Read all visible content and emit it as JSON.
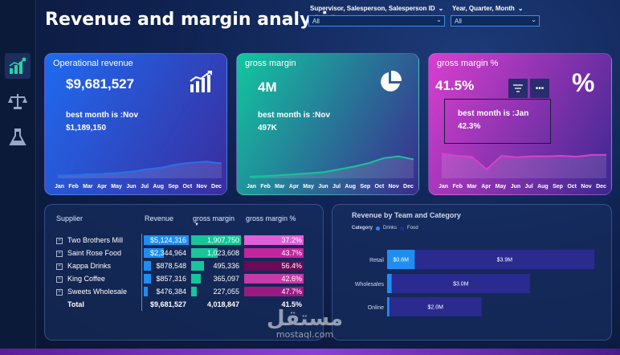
{
  "title": "Revenue and margin analysis",
  "slicers": [
    {
      "label": "Supervisor, Salesperson, Salesperson ID",
      "value": "All"
    },
    {
      "label": "Year, Quarter, Month",
      "value": "All"
    }
  ],
  "sidebar": [
    {
      "icon": "bar-chart-icon"
    },
    {
      "icon": "scale-icon"
    },
    {
      "icon": "flask-icon"
    }
  ],
  "months": [
    "Jan",
    "Feb",
    "Mar",
    "Apr",
    "May",
    "Jun",
    "Jul",
    "Aug",
    "Sep",
    "Oct",
    "Nov",
    "Dec"
  ],
  "cards": [
    {
      "title": "Operational revenue",
      "value": "$9,681,527",
      "best_label": "best month is :Nov",
      "best_value": "$1,189,150",
      "icon": "growth-chart-icon",
      "colors": {
        "from": "#1e6bf0",
        "to": "#3a2d9f",
        "line": "#2b6fe8"
      },
      "trend": [
        0.06,
        0.07,
        0.09,
        0.1,
        0.12,
        0.15,
        0.2,
        0.24,
        0.31,
        0.35,
        0.37,
        0.33
      ]
    },
    {
      "title": "gross margin",
      "value": "4M",
      "best_label": "best month is :Nov",
      "best_value": "497K",
      "icon": "pie-chart-icon",
      "colors": {
        "from": "#12c7a0",
        "to": "#3b2a8f",
        "line": "#18c49a"
      },
      "trend": [
        0.04,
        0.05,
        0.07,
        0.09,
        0.11,
        0.14,
        0.2,
        0.26,
        0.34,
        0.45,
        0.49,
        0.42
      ]
    },
    {
      "title": "gross margin %",
      "value": "41.5%",
      "best_label": "best month is :Jan",
      "best_value": "42.3%",
      "icon": "percent-icon",
      "colors": {
        "from": "#d93fcf",
        "to": "#3b2790",
        "line": "#d742c7"
      },
      "trend": [
        0.55,
        0.5,
        0.48,
        0.2,
        0.5,
        0.47,
        0.49,
        0.49,
        0.5,
        0.48,
        0.52,
        0.52
      ]
    }
  ],
  "table": {
    "headers": [
      "Supplier",
      "Revenue",
      "gross margin",
      "gross margin %"
    ],
    "rows": [
      {
        "supplier": "Two Brothers Mill",
        "revenue": "$5,124,316",
        "rev_frac": 1.0,
        "gm": "1,907,750",
        "gm_frac": 1.0,
        "gmp": "37.2%",
        "gmp_color": "#e05fd8"
      },
      {
        "supplier": "Saint Rose Food",
        "revenue": "$2,344,964",
        "rev_frac": 0.46,
        "gm": "1,023,608",
        "gm_frac": 0.54,
        "gmp": "43.7%",
        "gmp_color": "#c2269e"
      },
      {
        "supplier": "Kappa Drinks",
        "revenue": "$878,548",
        "rev_frac": 0.17,
        "gm": "495,336",
        "gm_frac": 0.26,
        "gmp": "56.4%",
        "gmp_color": "#6b0a57"
      },
      {
        "supplier": "King Coffee",
        "revenue": "$857,316",
        "rev_frac": 0.17,
        "gm": "365,097",
        "gm_frac": 0.19,
        "gmp": "42.6%",
        "gmp_color": "#c73aa8"
      },
      {
        "supplier": "Sweets Wholesale",
        "revenue": "$476,384",
        "rev_frac": 0.09,
        "gm": "227,055",
        "gm_frac": 0.12,
        "gmp": "47.7%",
        "gmp_color": "#9a1a82"
      }
    ],
    "total": {
      "label": "Total",
      "revenue": "$9,681,527",
      "gm": "4,018,847",
      "gmp": "41.5%"
    }
  },
  "chart_data": {
    "type": "bar",
    "title": "Revenue by Team and Category",
    "legend_title": "Category",
    "legend_position": "top-left",
    "categories": [
      "Retail",
      "Wholesales",
      "Online"
    ],
    "series": [
      {
        "name": "Drinks",
        "color": "#1f8ef1",
        "values": [
          0.6,
          0.1,
          0.05
        ],
        "labels": [
          "$0.6M",
          "",
          ""
        ]
      },
      {
        "name": "Food",
        "color": "#2a2a8f",
        "values": [
          3.9,
          3.0,
          2.0
        ],
        "labels": [
          "$3.9M",
          "$3.0M",
          "$2.0M"
        ]
      }
    ],
    "stacked": true,
    "orientation": "horizontal",
    "xlim": [
      0,
      4.6
    ]
  },
  "watermark": {
    "arabic": "مستقل",
    "latin": "mostaql.com"
  }
}
